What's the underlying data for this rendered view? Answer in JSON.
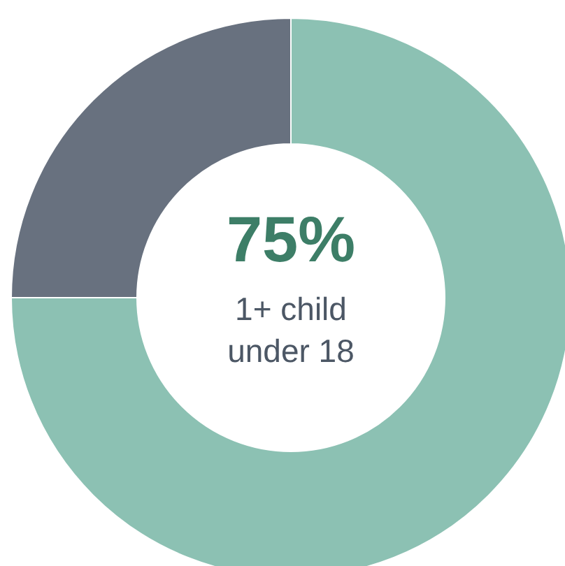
{
  "chart_data": {
    "type": "donut",
    "categories": [
      null,
      null
    ],
    "values": [
      75,
      25
    ],
    "colors": [
      "#8cc1b3",
      "#68717f"
    ],
    "value_labels": [
      "75%",
      null
    ],
    "annotations": [
      "1+ child\nunder 18"
    ]
  }
}
